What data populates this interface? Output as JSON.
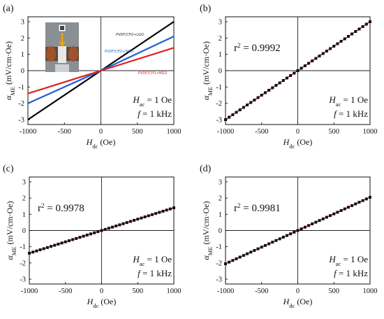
{
  "chart_data": [
    {
      "type": "line",
      "panel_label": "(a)",
      "xlim": [
        -1000,
        1000
      ],
      "ylim": [
        -3.3,
        3.3
      ],
      "xticks": [
        -1000,
        -500,
        0,
        500,
        1000
      ],
      "yticks": [
        -3,
        -2,
        -1,
        0,
        1,
        2,
        3
      ],
      "xlabel": "H_dc (Oe)",
      "ylabel": "α_ME (mV/cm·Oe)",
      "annotation": [
        "H_ac = 1 Oe",
        "f = 1 kHz"
      ],
      "grid": false,
      "inset": "photo of measurement setup",
      "series": [
        {
          "name": "PVDF/CFO+LGO",
          "color": "#000000",
          "x": [
            -1000,
            0,
            1000
          ],
          "y": [
            -3.0,
            0.0,
            3.0
          ]
        },
        {
          "name": "PVDF/CFO+NGO",
          "color": "#1f5fd6",
          "x": [
            -1000,
            0,
            1000
          ],
          "y": [
            -2.0,
            0.0,
            2.1
          ]
        },
        {
          "name": "PVDF/CFO+MGO",
          "color": "#e02020",
          "x": [
            -1000,
            0,
            1000
          ],
          "y": [
            -1.4,
            0.0,
            1.4
          ]
        }
      ]
    },
    {
      "type": "scatter",
      "panel_label": "(b)",
      "xlim": [
        -1000,
        1000
      ],
      "ylim": [
        -3.3,
        3.3
      ],
      "xticks": [
        -1000,
        -500,
        0,
        500,
        1000
      ],
      "yticks": [
        -3,
        -2,
        -1,
        0,
        1,
        2,
        3
      ],
      "xlabel": "H_dc (Oe)",
      "ylabel": "α_ME (mV/cm·Oe)",
      "r2": "r² = 0.9992",
      "annotation": [
        "H_ac = 1 Oe",
        "f = 1 kHz"
      ],
      "grid": false,
      "fit_line_color": "#e02020",
      "x_start": -1000,
      "x_step": 50,
      "slope": 0.003,
      "intercept": 0.0
    },
    {
      "type": "scatter",
      "panel_label": "(c)",
      "xlim": [
        -1000,
        1000
      ],
      "ylim": [
        -3.3,
        3.3
      ],
      "xticks": [
        -1000,
        -500,
        0,
        500,
        1000
      ],
      "yticks": [
        -3,
        -2,
        -1,
        0,
        1,
        2,
        3
      ],
      "xlabel": "H_dc (Oe)",
      "ylabel": "α_ME (mV/cm·Oe)",
      "r2": "r² = 0.9978",
      "annotation": [
        "H_ac = 1 Oe",
        "f = 1 kHz"
      ],
      "grid": false,
      "fit_line_color": "#e02020",
      "x_start": -1000,
      "x_step": 50,
      "slope": 0.0014,
      "intercept": 0.0
    },
    {
      "type": "scatter",
      "panel_label": "(d)",
      "xlim": [
        -1000,
        1000
      ],
      "ylim": [
        -3.3,
        3.3
      ],
      "xticks": [
        -1000,
        -500,
        0,
        500,
        1000
      ],
      "yticks": [
        -3,
        -2,
        -1,
        0,
        1,
        2,
        3
      ],
      "xlabel": "H_dc (Oe)",
      "ylabel": "α_ME (mV/cm·Oe)",
      "r2": "r² = 0.9981",
      "annotation": [
        "H_ac = 1 Oe",
        "f = 1 kHz"
      ],
      "grid": false,
      "fit_line_color": "#e02020",
      "x_start": -1000,
      "x_step": 50,
      "slope": 0.00205,
      "intercept": 0.0
    }
  ]
}
